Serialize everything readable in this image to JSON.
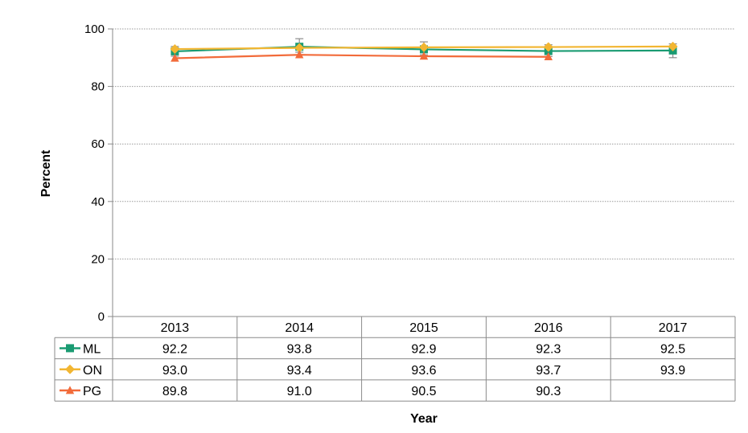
{
  "chart_data": {
    "type": "line",
    "title": "",
    "xlabel": "Year",
    "ylabel": "Percent",
    "ylim": [
      0,
      100
    ],
    "y_ticks": [
      "0",
      "20",
      "40",
      "60",
      "80",
      "100"
    ],
    "grid": "horizontal dotted",
    "legend": "data table below x-axis",
    "categories": [
      "2013",
      "2014",
      "2015",
      "2016",
      "2017"
    ],
    "series": [
      {
        "name": "ML",
        "color": "#1a9b72",
        "marker": "square",
        "values": [
          92.2,
          93.8,
          92.9,
          92.3,
          92.5
        ],
        "labels": [
          "92.2",
          "93.8",
          "92.9",
          "92.3",
          "92.5"
        ],
        "error_low": [
          90.5,
          91.9,
          91.0,
          90.4,
          90.0
        ],
        "error_high": [
          93.9,
          96.6,
          95.5,
          94.5,
          94.8
        ]
      },
      {
        "name": "ON",
        "color": "#f2b632",
        "marker": "diamond",
        "values": [
          93.0,
          93.4,
          93.6,
          93.7,
          93.9
        ],
        "labels": [
          "93.0",
          "93.4",
          "93.6",
          "93.7",
          "93.9"
        ]
      },
      {
        "name": "PG",
        "color": "#f26b3a",
        "marker": "triangle",
        "values": [
          89.8,
          91.0,
          90.5,
          90.3,
          null
        ],
        "labels": [
          "89.8",
          "91.0",
          "90.5",
          "90.3",
          ""
        ]
      }
    ]
  }
}
